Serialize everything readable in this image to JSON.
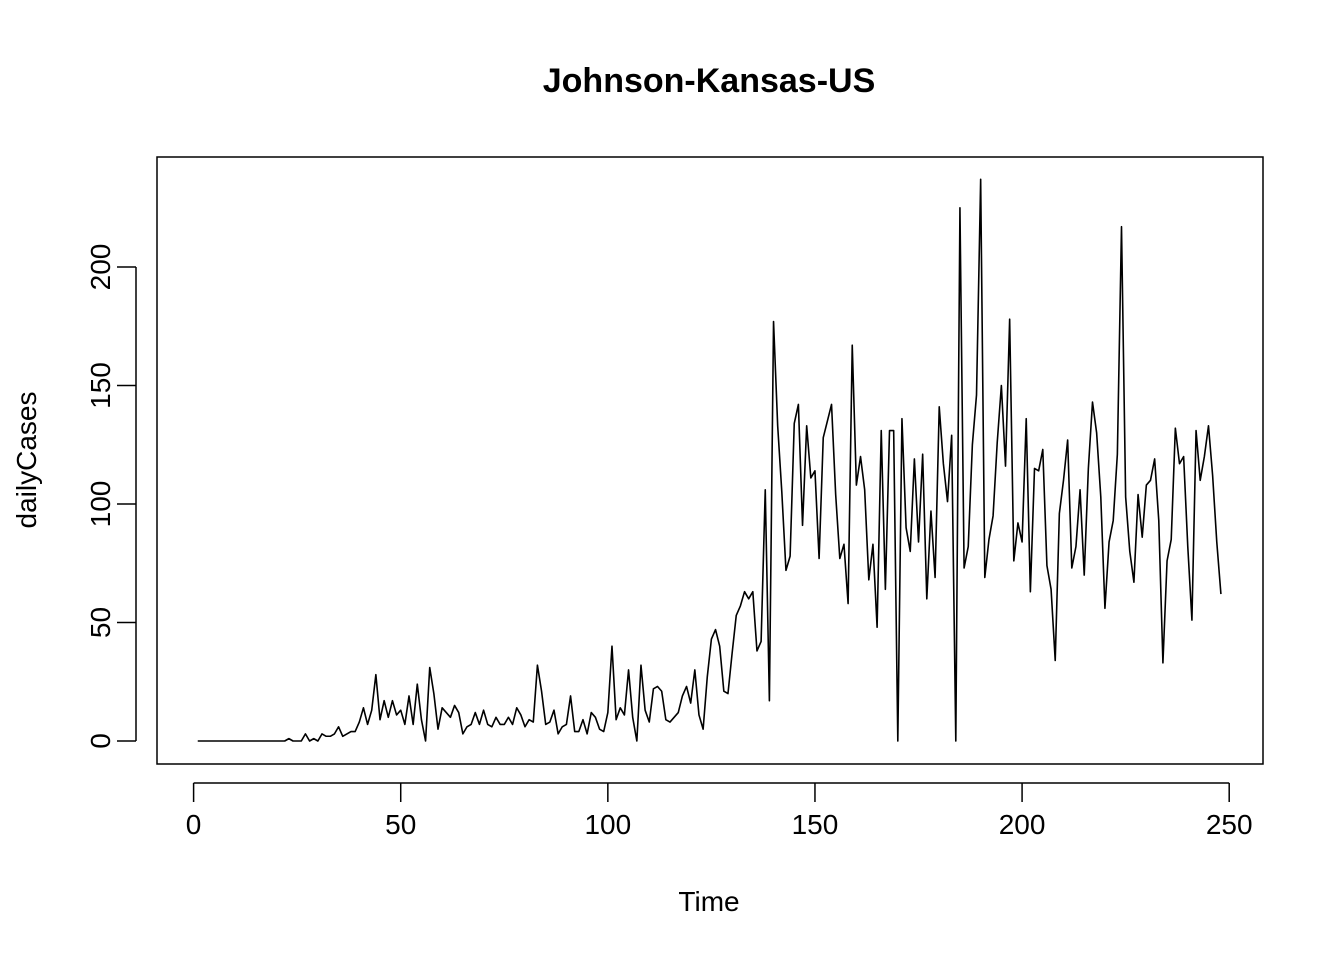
{
  "chart_data": {
    "type": "line",
    "title": "Johnson-Kansas-US",
    "xlabel": "Time",
    "ylabel": "dailyCases",
    "xlim": [
      1,
      248
    ],
    "ylim": [
      0,
      237
    ],
    "xticks": [
      0,
      50,
      100,
      150,
      200,
      250
    ],
    "yticks": [
      0,
      50,
      100,
      150,
      200
    ],
    "grid": false,
    "legend": "none",
    "line_color": "#000000",
    "x_start": 1,
    "y": [
      0,
      0,
      0,
      0,
      0,
      0,
      0,
      0,
      0,
      0,
      0,
      0,
      0,
      0,
      0,
      0,
      0,
      0,
      0,
      0,
      0,
      0,
      1,
      0,
      0,
      0,
      3,
      0,
      1,
      0,
      3,
      2,
      2,
      3,
      6,
      2,
      3,
      4,
      4,
      8,
      14,
      7,
      13,
      28,
      9,
      17,
      10,
      17,
      11,
      13,
      7,
      19,
      7,
      24,
      9,
      0,
      31,
      20,
      5,
      14,
      12,
      10,
      15,
      12,
      3,
      6,
      7,
      12,
      7,
      13,
      7,
      6,
      10,
      7,
      7,
      10,
      7,
      14,
      11,
      6,
      9,
      8,
      32,
      21,
      7,
      8,
      13,
      3,
      6,
      7,
      19,
      4,
      4,
      9,
      3,
      12,
      10,
      5,
      4,
      12,
      40,
      9,
      14,
      11,
      30,
      10,
      0,
      32,
      13,
      8,
      22,
      23,
      21,
      9,
      8,
      10,
      12,
      19,
      23,
      16,
      30,
      11,
      5,
      27,
      43,
      47,
      40,
      21,
      20,
      37,
      53,
      57,
      63,
      60,
      63,
      38,
      42,
      106,
      17,
      177,
      133,
      105,
      72,
      78,
      134,
      142,
      91,
      133,
      111,
      114,
      77,
      128,
      135,
      142,
      104,
      77,
      83,
      58,
      167,
      108,
      120,
      106,
      68,
      83,
      48,
      131,
      64,
      131,
      131,
      0,
      136,
      90,
      80,
      119,
      84,
      121,
      60,
      97,
      69,
      141,
      117,
      101,
      129,
      0,
      225,
      73,
      82,
      125,
      146,
      237,
      69,
      85,
      95,
      126,
      150,
      116,
      178,
      76,
      92,
      84,
      136,
      63,
      115,
      114,
      123,
      74,
      64,
      34,
      96,
      110,
      127,
      73,
      82,
      106,
      70,
      115,
      143,
      130,
      103,
      56,
      84,
      93,
      121,
      217,
      103,
      80,
      67,
      104,
      86,
      108,
      110,
      119,
      93,
      33,
      76,
      85,
      132,
      117,
      120,
      82,
      51,
      131,
      110,
      120,
      133,
      112,
      84,
      62
    ]
  }
}
